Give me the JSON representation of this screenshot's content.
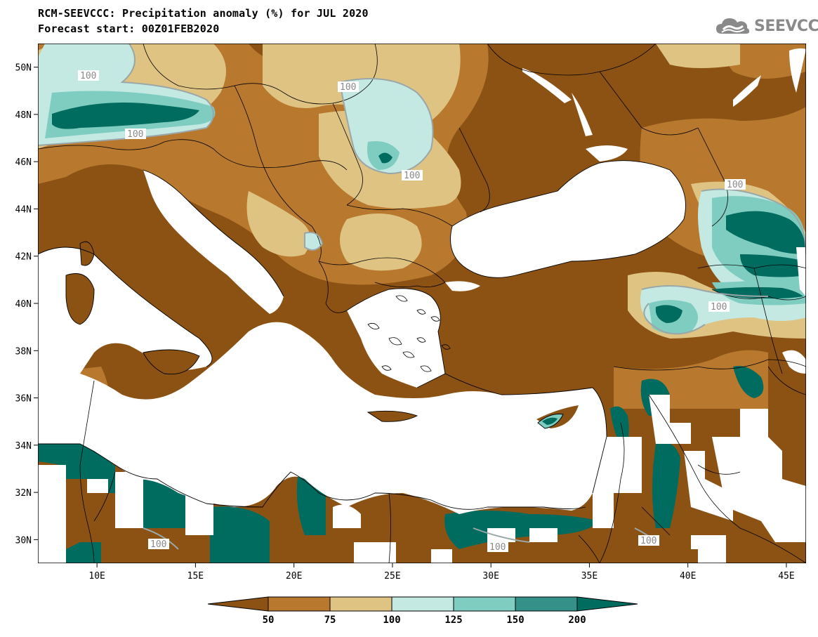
{
  "header": {
    "title": "RCM-SEEVCCC: Precipitation anomaly (%) for JUL 2020",
    "subtitle": "Forecast start: 00Z01FEB2020"
  },
  "logo": {
    "text": "SEEVCCC",
    "icon": "cloud-icon"
  },
  "map": {
    "lat_labels": [
      "50N",
      "48N",
      "46N",
      "44N",
      "42N",
      "40N",
      "38N",
      "36N",
      "34N",
      "32N",
      "30N"
    ],
    "lon_labels": [
      "10E",
      "15E",
      "20E",
      "25E",
      "30E",
      "35E",
      "40E",
      "45E"
    ],
    "contour_labels": [
      "100",
      "100",
      "100",
      "100",
      "100",
      "100",
      "100",
      "100",
      "100"
    ],
    "extent": {
      "lon": [
        7,
        46
      ],
      "lat": [
        29,
        51
      ]
    }
  },
  "colorbar": {
    "tick_labels": [
      "50",
      "75",
      "100",
      "125",
      "150",
      "200"
    ],
    "colors": [
      "#8B5214",
      "#B8782E",
      "#DFC383",
      "#C4E9E3",
      "#7ECDC0",
      "#35908A",
      "#006B5F"
    ]
  },
  "colors": {
    "very_dry": "#8B5214",
    "dry": "#B8782E",
    "slightly_dry": "#DFC383",
    "slightly_wet": "#C4E9E3",
    "wet": "#7ECDC0",
    "very_wet": "#35908A",
    "extreme_wet": "#006B5F"
  }
}
